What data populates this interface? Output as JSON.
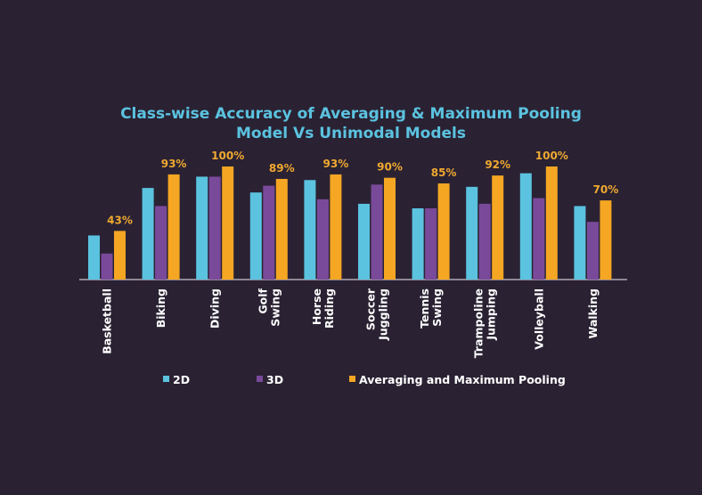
{
  "chart_data": {
    "type": "bar",
    "title_line1": "Class-wise Accuracy of Averaging & Maximum Pooling",
    "title_line2": "Model Vs Unimodal Models",
    "xlabel": "",
    "ylabel": "",
    "ylim": [
      0,
      100
    ],
    "grid": false,
    "legend_position": "bottom",
    "categories": [
      [
        "Basketball"
      ],
      [
        "Biking"
      ],
      [
        "Diving"
      ],
      [
        "Golf",
        "Swing"
      ],
      [
        "Horse",
        "Riding"
      ],
      [
        "Soccer",
        "Juggling"
      ],
      [
        "Tennis",
        "Swing"
      ],
      [
        "Trampoline",
        "Jumping"
      ],
      [
        "Volleyball"
      ],
      [
        "Walking"
      ]
    ],
    "series": [
      {
        "name": "2D",
        "color": "#5bc3e0",
        "values": [
          39,
          81,
          91,
          77,
          88,
          67,
          63,
          82,
          94,
          65
        ]
      },
      {
        "name": "3D",
        "color": "#7a4a9a",
        "values": [
          23,
          65,
          91,
          83,
          71,
          84,
          63,
          67,
          72,
          51
        ]
      },
      {
        "name": "Averaging and Maximum Pooling",
        "color": "#f5a623",
        "values": [
          43,
          93,
          100,
          89,
          93,
          90,
          85,
          92,
          100,
          70
        ]
      }
    ],
    "data_labels": [
      "43%",
      "93%",
      "100%",
      "89%",
      "93%",
      "90%",
      "85%",
      "92%",
      "100%",
      "70%"
    ]
  }
}
